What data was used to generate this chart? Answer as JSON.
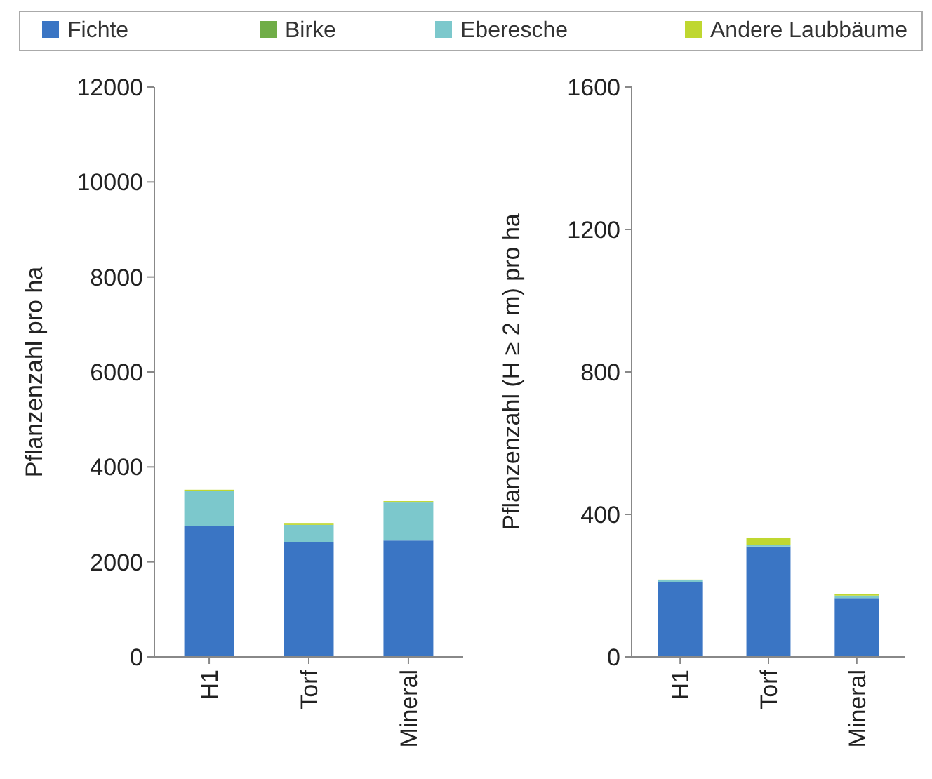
{
  "chart_data": [
    {
      "type": "bar",
      "stacked": true,
      "ylabel": "Pflanzenzahl pro ha",
      "categories": [
        "H1",
        "Torf",
        "Mineral"
      ],
      "legend": "top",
      "series": [
        {
          "name": "Fichte",
          "color": "#3a75c4",
          "values": [
            2750,
            2420,
            2450
          ]
        },
        {
          "name": "Birke",
          "color": "#70ad47",
          "values": [
            null,
            null,
            null
          ]
        },
        {
          "name": "Eberesche",
          "color": "#7cc8cc",
          "values": [
            740,
            360,
            800
          ]
        },
        {
          "name": "Andere Laubbäume",
          "color": "#bfd730",
          "values": [
            30,
            40,
            30
          ]
        }
      ],
      "ylim": [
        0,
        12000
      ],
      "yticks": [
        0,
        2000,
        4000,
        6000,
        8000,
        10000,
        12000
      ],
      "grid": false
    },
    {
      "type": "bar",
      "stacked": true,
      "ylabel": "Pflanzenzahl (H ≥ 2 m) pro ha",
      "categories": [
        "H1",
        "Torf",
        "Mineral"
      ],
      "series": [
        {
          "color": "#3a75c4",
          "values": [
            210,
            310,
            165
          ]
        },
        {
          "color": "#7cc8cc",
          "values": [
            5,
            5,
            7
          ]
        },
        {
          "color": "#bfd730",
          "values": [
            2,
            20,
            5
          ]
        }
      ],
      "ylim": [
        0,
        1600
      ],
      "yticks": [
        0,
        400,
        800,
        1200,
        1600
      ],
      "grid": false
    }
  ]
}
